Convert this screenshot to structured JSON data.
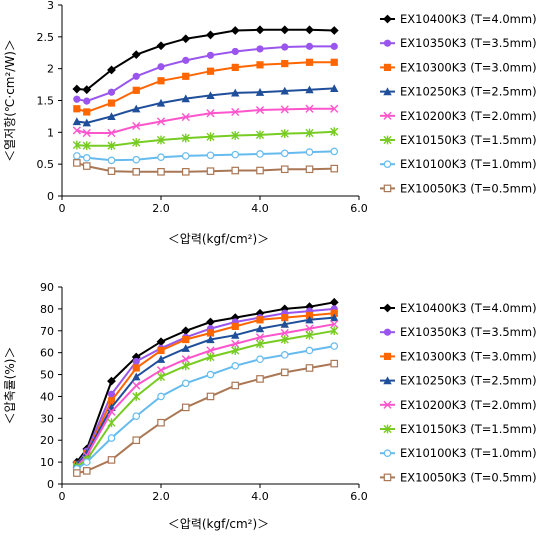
{
  "chart_data": [
    {
      "type": "line",
      "title": "",
      "xlabel": "＜압력(kgf/cm²)＞",
      "ylabel": "＜열저항(℃·cm²/W)＞",
      "xlim": [
        0,
        6
      ],
      "ylim": [
        0,
        3
      ],
      "xticks": [
        0,
        2,
        4,
        6
      ],
      "xtick_labels": [
        "0",
        "2.0",
        "4.0",
        "6.0"
      ],
      "yticks": [
        0,
        0.5,
        1,
        1.5,
        2,
        2.5,
        3
      ],
      "ytick_labels": [
        "0",
        "0.5",
        "1",
        "1.5",
        "2",
        "2.5",
        "3"
      ],
      "grid": false,
      "legend_position": "right",
      "x": [
        0.3,
        0.5,
        1.0,
        1.5,
        2.0,
        2.5,
        3.0,
        3.5,
        4.0,
        4.5,
        5.0,
        5.5
      ],
      "series": [
        {
          "name": "EX10400K3  (T=4.0mm)",
          "marker": "diamond",
          "color": "#000000",
          "values": [
            1.68,
            1.67,
            1.98,
            2.22,
            2.36,
            2.47,
            2.53,
            2.6,
            2.61,
            2.61,
            2.61,
            2.6
          ]
        },
        {
          "name": "EX10350K3  (T=3.5mm)",
          "marker": "circle",
          "color": "#9955ee",
          "values": [
            1.52,
            1.49,
            1.63,
            1.88,
            2.03,
            2.13,
            2.21,
            2.27,
            2.31,
            2.34,
            2.35,
            2.35
          ]
        },
        {
          "name": "EX10300K3  (T=3.0mm)",
          "marker": "square",
          "color": "#ff6600",
          "values": [
            1.37,
            1.32,
            1.46,
            1.66,
            1.81,
            1.88,
            1.96,
            2.02,
            2.06,
            2.08,
            2.1,
            2.1
          ]
        },
        {
          "name": "EX10250K3  (T=2.5mm)",
          "marker": "triangle",
          "color": "#1f4e9a",
          "values": [
            1.17,
            1.15,
            1.25,
            1.37,
            1.46,
            1.53,
            1.58,
            1.62,
            1.63,
            1.65,
            1.67,
            1.69
          ]
        },
        {
          "name": "EX10200K3  (T=2.0mm)",
          "marker": "x",
          "color": "#ff55cc",
          "values": [
            1.03,
            0.99,
            0.99,
            1.1,
            1.17,
            1.24,
            1.3,
            1.32,
            1.35,
            1.36,
            1.37,
            1.37
          ]
        },
        {
          "name": "EX10150K3  (T=1.5mm)",
          "marker": "star",
          "color": "#77cc22",
          "values": [
            0.8,
            0.79,
            0.79,
            0.84,
            0.88,
            0.91,
            0.93,
            0.95,
            0.96,
            0.98,
            0.99,
            1.01
          ]
        },
        {
          "name": "EX10100K3  (T=1.0mm)",
          "marker": "circle-open",
          "color": "#66bbee",
          "values": [
            0.63,
            0.6,
            0.56,
            0.57,
            0.61,
            0.63,
            0.64,
            0.65,
            0.66,
            0.67,
            0.69,
            0.7
          ]
        },
        {
          "name": "EX10050K3  (T=0.5mm)",
          "marker": "square-open",
          "color": "#aa7755",
          "values": [
            0.52,
            0.47,
            0.39,
            0.38,
            0.38,
            0.38,
            0.39,
            0.4,
            0.4,
            0.42,
            0.42,
            0.43
          ]
        }
      ]
    },
    {
      "type": "line",
      "title": "",
      "xlabel": "＜압력(kgf/cm²)＞",
      "ylabel": "＜압축률(%)＞",
      "xlim": [
        0,
        6
      ],
      "ylim": [
        0,
        90
      ],
      "xticks": [
        0,
        2,
        4,
        6
      ],
      "xtick_labels": [
        "0",
        "2.0",
        "4.0",
        "6.0"
      ],
      "yticks": [
        0,
        10,
        20,
        30,
        40,
        50,
        60,
        70,
        80,
        90
      ],
      "ytick_labels": [
        "0",
        "10",
        "20",
        "30",
        "40",
        "50",
        "60",
        "70",
        "80",
        "90"
      ],
      "grid": false,
      "legend_position": "right",
      "x": [
        0.3,
        0.5,
        1.0,
        1.5,
        2.0,
        2.5,
        3.0,
        3.5,
        4.0,
        4.5,
        5.0,
        5.5
      ],
      "series": [
        {
          "name": "EX10400K3  (T=4.0mm)",
          "marker": "diamond",
          "color": "#000000",
          "values": [
            10,
            16,
            47,
            58,
            65,
            70,
            74,
            76,
            78,
            80,
            81,
            83
          ]
        },
        {
          "name": "EX10350K3  (T=3.5mm)",
          "marker": "circle",
          "color": "#9955ee",
          "values": [
            9,
            15,
            41,
            56,
            62,
            67,
            71,
            74,
            76,
            78,
            79,
            80
          ]
        },
        {
          "name": "EX10300K3  (T=3.0mm)",
          "marker": "square",
          "color": "#ff6600",
          "values": [
            9,
            14,
            38,
            53,
            61,
            66,
            69,
            72,
            75,
            76,
            77,
            78
          ]
        },
        {
          "name": "EX10250K3  (T=2.5mm)",
          "marker": "triangle",
          "color": "#1f4e9a",
          "values": [
            9,
            14,
            35,
            49,
            57,
            62,
            66,
            68,
            71,
            73,
            75,
            76
          ]
        },
        {
          "name": "EX10200K3  (T=2.0mm)",
          "marker": "x",
          "color": "#ff55cc",
          "values": [
            8,
            13,
            33,
            45,
            52,
            57,
            61,
            64,
            67,
            69,
            71,
            73
          ]
        },
        {
          "name": "EX10150K3  (T=1.5mm)",
          "marker": "star",
          "color": "#77cc22",
          "values": [
            8,
            11,
            28,
            40,
            49,
            54,
            58,
            61,
            64,
            66,
            68,
            70
          ]
        },
        {
          "name": "EX10100K3  (T=1.0mm)",
          "marker": "circle-open",
          "color": "#66bbee",
          "values": [
            7,
            10,
            21,
            31,
            40,
            46,
            50,
            54,
            57,
            59,
            61,
            63
          ]
        },
        {
          "name": "EX10050K3  (T=0.5mm)",
          "marker": "square-open",
          "color": "#aa7755",
          "values": [
            5,
            6,
            11,
            20,
            28,
            35,
            40,
            45,
            48,
            51,
            53,
            55
          ]
        }
      ]
    }
  ]
}
